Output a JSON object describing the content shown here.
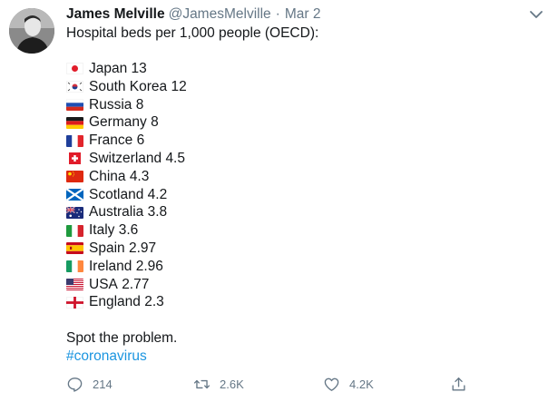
{
  "user": {
    "display_name": "James Melville",
    "handle": "@JamesMelville",
    "separator": "·",
    "date": "Mar 2"
  },
  "tweet": {
    "intro": "Hospital beds per 1,000 people (OECD):",
    "countries": [
      {
        "name": "Japan",
        "value": "13",
        "flag": "japan-flag-icon"
      },
      {
        "name": "South Korea",
        "value": "12",
        "flag": "south-korea-flag-icon"
      },
      {
        "name": "Russia",
        "value": "8",
        "flag": "russia-flag-icon"
      },
      {
        "name": "Germany",
        "value": "8",
        "flag": "germany-flag-icon"
      },
      {
        "name": "France",
        "value": "6",
        "flag": "france-flag-icon"
      },
      {
        "name": "Switzerland",
        "value": "4.5",
        "flag": "switzerland-flag-icon"
      },
      {
        "name": "China",
        "value": "4.3",
        "flag": "china-flag-icon"
      },
      {
        "name": "Scotland",
        "value": "4.2",
        "flag": "scotland-flag-icon"
      },
      {
        "name": "Australia",
        "value": "3.8",
        "flag": "australia-flag-icon"
      },
      {
        "name": "Italy",
        "value": "3.6",
        "flag": "italy-flag-icon"
      },
      {
        "name": "Spain",
        "value": "2.97",
        "flag": "spain-flag-icon"
      },
      {
        "name": "Ireland",
        "value": "2.96",
        "flag": "ireland-flag-icon"
      },
      {
        "name": "USA",
        "value": "2.77",
        "flag": "usa-flag-icon"
      },
      {
        "name": "England",
        "value": "2.3",
        "flag": "england-flag-icon"
      }
    ],
    "outro": "Spot the problem.",
    "hashtag": "#coronavirus"
  },
  "actions": {
    "replies": "214",
    "retweets": "2.6K",
    "likes": "4.2K"
  },
  "colors": {
    "text": "#14171a",
    "secondary": "#657786",
    "link": "#1b95e0"
  },
  "icons": [
    "chevron-down-icon",
    "reply-icon",
    "retweet-icon",
    "like-icon",
    "share-icon"
  ]
}
